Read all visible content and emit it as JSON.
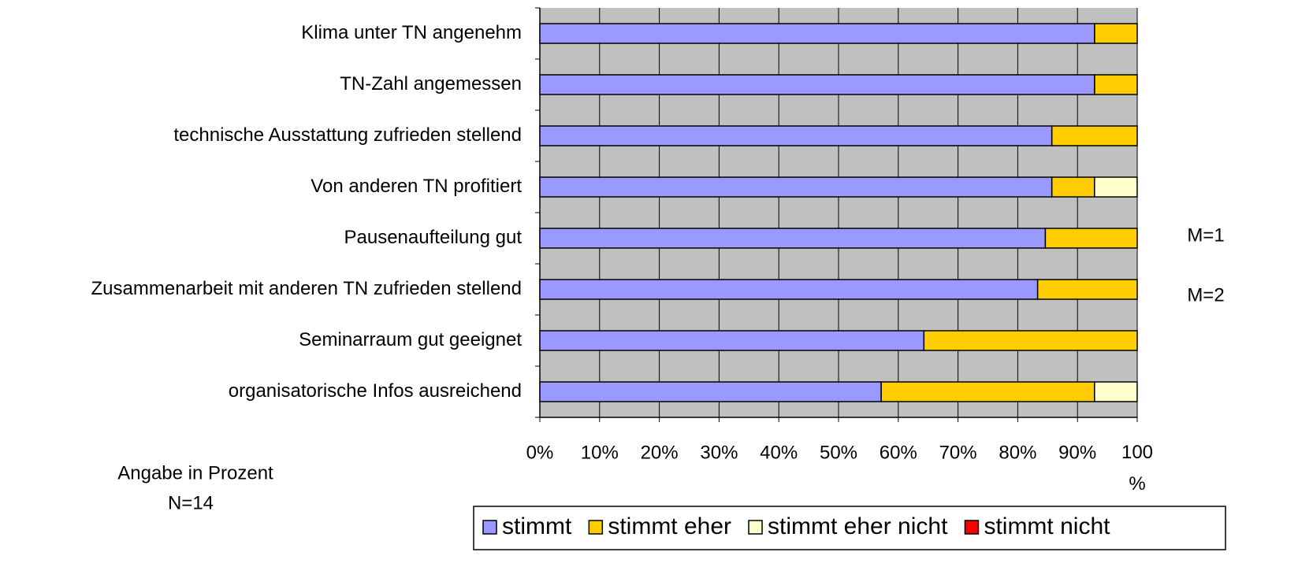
{
  "chart_data": {
    "type": "stacked_barh",
    "categories": [
      "Klima unter TN angenehm",
      "TN-Zahl angemessen",
      "technische Ausstattung zufrieden stellend",
      "Von anderen TN profitiert",
      "Pausenaufteilung gut",
      "Zusammenarbeit mit anderen TN zufrieden stellend",
      "Seminarraum gut geeignet",
      "organisatorische Infos ausreichend"
    ],
    "series": [
      {
        "name": "stimmt",
        "color": "#9999ff",
        "values": [
          92.86,
          92.86,
          85.71,
          85.71,
          84.62,
          83.33,
          64.29,
          57.14
        ]
      },
      {
        "name": "stimmt eher",
        "color": "#ffcc00",
        "values": [
          7.14,
          7.14,
          14.29,
          7.14,
          15.38,
          16.67,
          35.71,
          35.71
        ]
      },
      {
        "name": "stimmt eher nicht",
        "color": "#ffffcc",
        "values": [
          0,
          0,
          0,
          7.14,
          0,
          0,
          0,
          7.14
        ]
      },
      {
        "name": "stimmt nicht",
        "color": "#ff0000",
        "values": [
          0,
          0,
          0,
          0,
          0,
          0,
          0,
          0
        ]
      }
    ],
    "xlim": [
      0,
      100
    ],
    "xticks": [
      {
        "value": 0,
        "label": "0%"
      },
      {
        "value": 10,
        "label": "10%"
      },
      {
        "value": 20,
        "label": "20%"
      },
      {
        "value": 30,
        "label": "30%"
      },
      {
        "value": 40,
        "label": "40%"
      },
      {
        "value": 50,
        "label": "50%"
      },
      {
        "value": 60,
        "label": "60%"
      },
      {
        "value": 70,
        "label": "70%"
      },
      {
        "value": 80,
        "label": "80%"
      },
      {
        "value": 90,
        "label": "90%"
      },
      {
        "value": 100,
        "label": "100 %"
      }
    ],
    "grid": true,
    "annotations": [
      "M=1",
      "M=2",
      "Angabe in Prozent",
      "N=14"
    ]
  }
}
